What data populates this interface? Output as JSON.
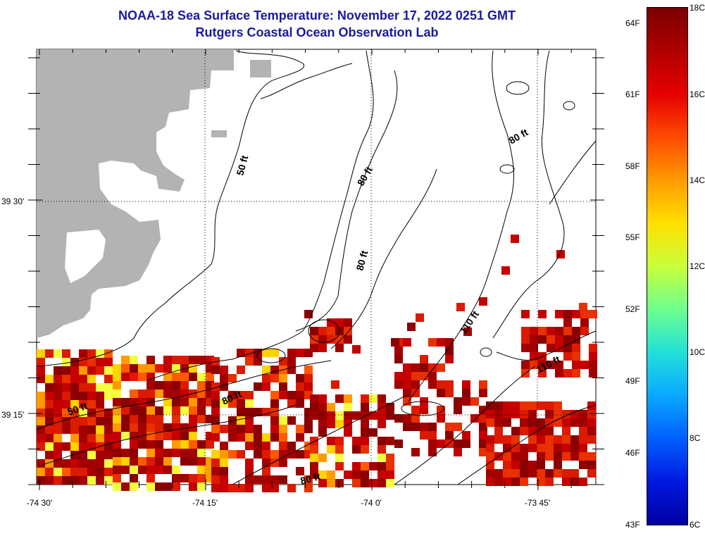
{
  "title": "NOAA-18 Sea Surface Temperature:  November 17, 2022 0251 GMT",
  "subtitle": "Rutgers Coastal Ocean Observation Lab",
  "axes": {
    "x_labels": [
      "-74 30'",
      "-74 15'",
      "-74 0'",
      "-73 45'"
    ],
    "y_labels": [
      "39 30'",
      "39 15'"
    ]
  },
  "contour_labels": [
    "50 ft",
    "80 ft",
    "80 ft",
    "80 ft",
    "110 ft",
    "110 ft",
    "80 ft",
    "50 ft",
    "80 ft"
  ],
  "colorbar": {
    "celsius": [
      "18C",
      "16C",
      "14C",
      "12C",
      "10C",
      "8C",
      "6C"
    ],
    "fahrenheit": [
      "64F",
      "61F",
      "58F",
      "55F",
      "52F",
      "49F",
      "46F",
      "43F"
    ],
    "gradient": [
      "#7a0000",
      "#b00000",
      "#e60000",
      "#ff4a00",
      "#ff9a00",
      "#ffe000",
      "#c8ff3a",
      "#6dff8f",
      "#22e0d8",
      "#0aa8ff",
      "#0060ff",
      "#0018e0",
      "#0000a0"
    ]
  },
  "colors": {
    "land": "#b3b3b3",
    "title": "#1a1aa0",
    "sst_palette": [
      "#8b0000",
      "#a30000",
      "#c40000",
      "#dc1a00",
      "#e83000",
      "#ff5a00",
      "#ff9a00",
      "#ffd200",
      "#f5ff40"
    ]
  }
}
